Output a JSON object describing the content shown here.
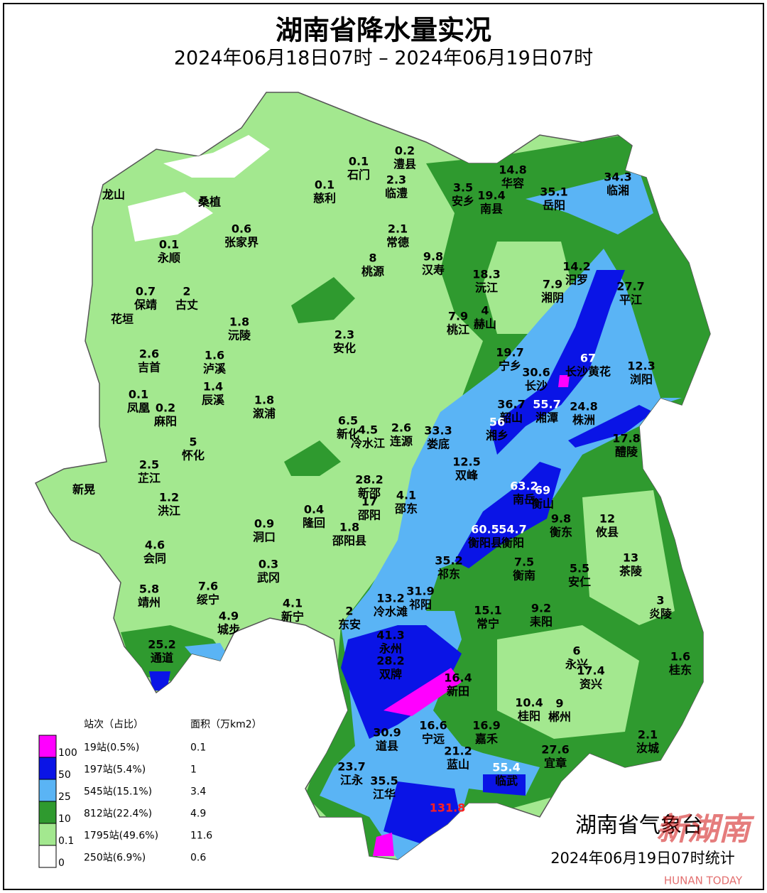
{
  "header": {
    "title": "湖南省降水量实况",
    "subtitle": "2024年06月18日07时 – 2024年06月19日07时"
  },
  "stations": [
    {
      "name": "龙山"
    },
    {
      "name": "桑植"
    },
    {
      "value": 0.1,
      "name": "石门"
    },
    {
      "value": 0.2,
      "name": "澧县"
    },
    {
      "value": 2.3,
      "name": "临澧"
    },
    {
      "value": 0.1,
      "name": "慈利"
    },
    {
      "value": 14.8,
      "name": "华容"
    },
    {
      "value": 3.5,
      "name": "安乡"
    },
    {
      "value": 19.4,
      "name": "南县"
    },
    {
      "value": 35.1,
      "name": "岳阳"
    },
    {
      "value": 34.3,
      "name": "临湘"
    },
    {
      "value": 0.6,
      "name": "张家界"
    },
    {
      "value": 2.1,
      "name": "常德"
    },
    {
      "value": 0.1,
      "name": "永顺"
    },
    {
      "value": 8,
      "name": "桃源"
    },
    {
      "value": 9.8,
      "name": "汉寿"
    },
    {
      "value": 18.3,
      "name": "沅江"
    },
    {
      "value": 14.2,
      "name": "汨罗"
    },
    {
      "value": 7.9,
      "name": "湘阴"
    },
    {
      "value": 27.7,
      "name": "平江"
    },
    {
      "value": 0.7,
      "name": "保靖"
    },
    {
      "value": 2,
      "name": "古丈"
    },
    {
      "name": "花垣"
    },
    {
      "value": 7.9,
      "name": "桃江"
    },
    {
      "value": 4,
      "name": "赫山"
    },
    {
      "value": 1.8,
      "name": "沅陵"
    },
    {
      "value": 2.3,
      "name": "安化"
    },
    {
      "value": 19.7,
      "name": "宁乡"
    },
    {
      "value": 67,
      "name": "长沙黄花",
      "color": "#ffffff"
    },
    {
      "value": 30.6,
      "name": "长沙"
    },
    {
      "value": 12.3,
      "name": "浏阳"
    },
    {
      "value": 2.6,
      "name": "吉首"
    },
    {
      "value": 1.6,
      "name": "泸溪"
    },
    {
      "value": 1.4,
      "name": "辰溪"
    },
    {
      "value": 0.1,
      "name": "凤凰"
    },
    {
      "value": 0.2,
      "name": "麻阳"
    },
    {
      "value": 1.8,
      "name": "溆浦"
    },
    {
      "value": 36.7,
      "name": "韶山"
    },
    {
      "value": 55.7,
      "name": "湘潭",
      "color": "#ffffff"
    },
    {
      "value": 24.8,
      "name": "株洲"
    },
    {
      "value": 56,
      "name": "湘乡",
      "color": "#ffffff"
    },
    {
      "value": 6.5,
      "name": "新化"
    },
    {
      "value": 4.5,
      "name": "冷水江"
    },
    {
      "value": 2.6,
      "name": "连源"
    },
    {
      "value": 33.3,
      "name": "娄底"
    },
    {
      "value": 5,
      "name": "怀化"
    },
    {
      "value": 17.8,
      "name": "醴陵"
    },
    {
      "value": 12.5,
      "name": "双峰"
    },
    {
      "value": 2.5,
      "name": "芷江"
    },
    {
      "name": "新晃"
    },
    {
      "value": 28.2,
      "name": "新邵"
    },
    {
      "value": 63.2,
      "name": "南岳",
      "color": "#ffffff"
    },
    {
      "value": 69,
      "name": "衡山",
      "color": "#ffffff"
    },
    {
      "value": 17,
      "name": "邵阳"
    },
    {
      "value": 4.1,
      "name": "邵东"
    },
    {
      "value": 1.2,
      "name": "洪江"
    },
    {
      "value": 9.8,
      "name": "衡东"
    },
    {
      "value": 12,
      "name": "攸县"
    },
    {
      "value": 0.9,
      "name": "洞口"
    },
    {
      "value": 0.4,
      "name": "隆回"
    },
    {
      "value": 1.8,
      "name": "邵阳县"
    },
    {
      "value": 60.5,
      "name": "衡阳县",
      "color": "#ffffff"
    },
    {
      "value": 54.7,
      "name": "衡阳",
      "color": "#ffffff"
    },
    {
      "value": 4.6,
      "name": "会同"
    },
    {
      "value": 35.2,
      "name": "祁东"
    },
    {
      "value": 7.5,
      "name": "衡南"
    },
    {
      "value": 13,
      "name": "茶陵"
    },
    {
      "value": 5.5,
      "name": "安仁"
    },
    {
      "value": 0.3,
      "name": "武冈"
    },
    {
      "value": 5.8,
      "name": "靖州"
    },
    {
      "value": 7.6,
      "name": "绥宁"
    },
    {
      "value": 4.1,
      "name": "新宁"
    },
    {
      "value": 4.9,
      "name": "城步"
    },
    {
      "value": 13.2,
      "name": "冷水滩"
    },
    {
      "value": 31.9,
      "name": "祁阳"
    },
    {
      "value": 15.1,
      "name": "常宁"
    },
    {
      "value": 9.2,
      "name": "耒阳"
    },
    {
      "value": 3,
      "name": "炎陵"
    },
    {
      "value": 2,
      "name": "东安"
    },
    {
      "value": 25.2,
      "name": "通道"
    },
    {
      "value": 41.3,
      "name": "永州"
    },
    {
      "value": 28.2,
      "name": "双牌"
    },
    {
      "value": 6,
      "name": "永兴"
    },
    {
      "value": 17.4,
      "name": "资兴"
    },
    {
      "value": 1.6,
      "name": "桂东"
    },
    {
      "value": 16.4,
      "name": "新田"
    },
    {
      "value": 10.4,
      "name": "桂阳"
    },
    {
      "value": 9,
      "name": "郴州"
    },
    {
      "value": 30.9,
      "name": "道县"
    },
    {
      "value": 16.6,
      "name": "宁远"
    },
    {
      "value": 16.9,
      "name": "嘉禾"
    },
    {
      "value": 2.1,
      "name": "汝城"
    },
    {
      "value": 21.2,
      "name": "蓝山"
    },
    {
      "value": 27.6,
      "name": "宜章"
    },
    {
      "value": 23.7,
      "name": "江永"
    },
    {
      "value": 55.4,
      "name": "临武",
      "color": "#ffffff"
    },
    {
      "value": 35.5,
      "name": "江华"
    },
    {
      "value": 131.8,
      "color": "#ff2020"
    }
  ],
  "legend": {
    "headers": [
      "站次（占比）",
      "面积（万km2）"
    ],
    "thresholds": [
      "100",
      "50",
      "25",
      "10",
      "0.1",
      "0"
    ],
    "rows": [
      {
        "stations": "19站(0.5%)",
        "area": "0.1",
        "color": "#ff00ff"
      },
      {
        "stations": "197站(5.4%)",
        "area": "1",
        "color": "#0a14e6"
      },
      {
        "stations": "545站(15.1%)",
        "area": "3.4",
        "color": "#5ab4f5"
      },
      {
        "stations": "812站(22.4%)",
        "area": "4.9",
        "color": "#2f9a2f"
      },
      {
        "stations": "1795站(49.6%)",
        "area": "11.6",
        "color": "#a3e88f"
      },
      {
        "stations": "250站(6.9%)",
        "area": "0.6",
        "color": "#ffffff"
      }
    ]
  },
  "footer": {
    "agency": "湖南省气象台",
    "issued": "2024年06月19日07时统计"
  },
  "watermark": {
    "logo": "新湖南",
    "text": "HUNAN TODAY"
  }
}
